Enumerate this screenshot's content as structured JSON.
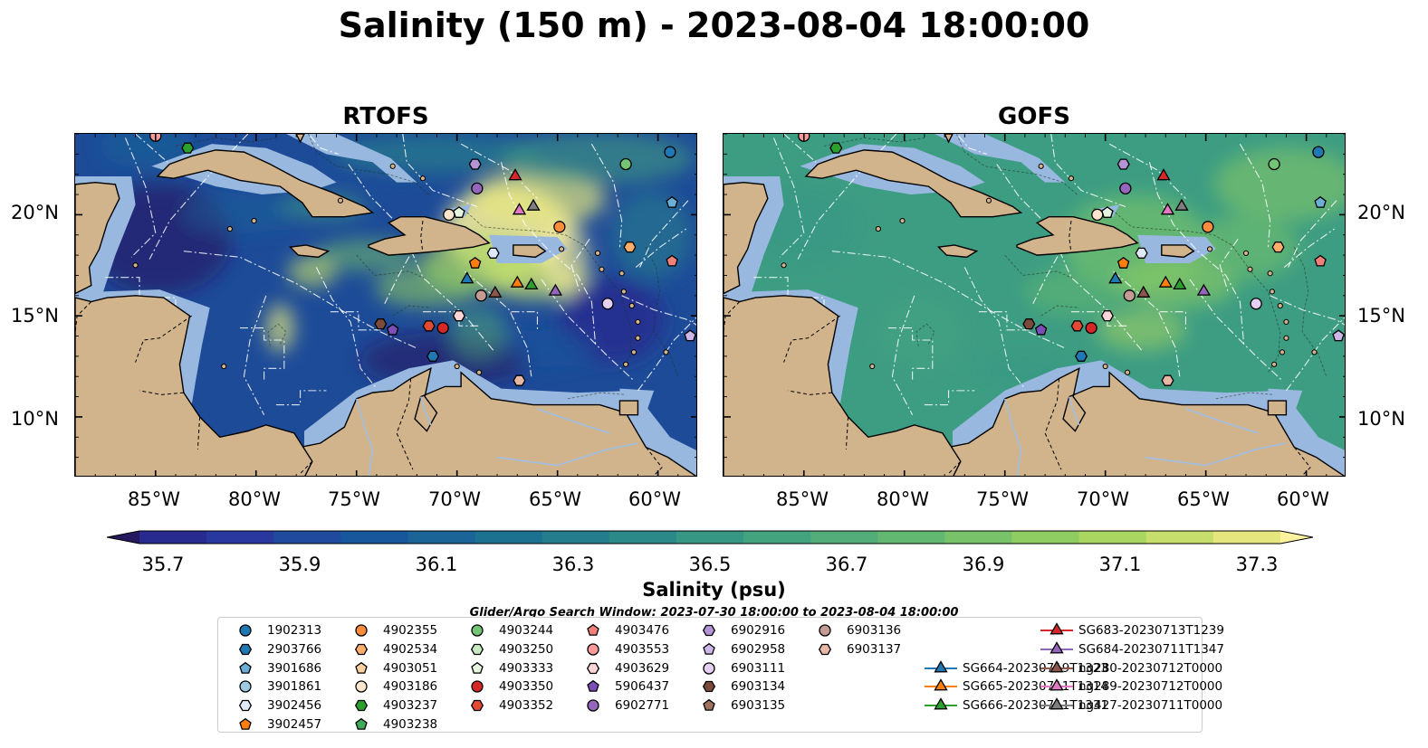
{
  "title": "Salinity (150 m) - 2023-08-04 18:00:00",
  "panels": [
    {
      "title": "RTOFS"
    },
    {
      "title": "GOFS"
    }
  ],
  "axes": {
    "lon_ticks": [
      "85°W",
      "80°W",
      "75°W",
      "70°W",
      "65°W",
      "60°W"
    ],
    "lat_ticks": [
      "20°N",
      "15°N",
      "10°N"
    ]
  },
  "colorbar": {
    "label": "Salinity (psu)",
    "ticks": [
      "35.7",
      "35.9",
      "36.1",
      "36.3",
      "36.5",
      "36.7",
      "36.9",
      "37.1",
      "37.3"
    ],
    "colors": [
      "#26185f",
      "#272a8e",
      "#29389f",
      "#1f4a9d",
      "#19579c",
      "#1a6498",
      "#1c7190",
      "#237d8d",
      "#2b8a89",
      "#369785",
      "#43a37f",
      "#52ad78",
      "#62b871",
      "#78c36a",
      "#8fcd63",
      "#a8d660",
      "#c6df6c",
      "#e5e77e",
      "#fdf29e"
    ]
  },
  "search_window": "Glider/Argo Search Window: 2023-07-30 18:00:00 to 2023-08-04 18:00:00",
  "legend": [
    {
      "label": "1902313",
      "marker": "circle",
      "color": "#1f77b4"
    },
    {
      "label": "2903766",
      "marker": "hexagon",
      "color": "#1f77b4"
    },
    {
      "label": "3901686",
      "marker": "pentagon",
      "color": "#6baed6"
    },
    {
      "label": "3901861",
      "marker": "circle",
      "color": "#9ecae1"
    },
    {
      "label": "3902456",
      "marker": "hexagon",
      "color": "#deebf7"
    },
    {
      "label": "3902457",
      "marker": "pentagon",
      "color": "#ff7f0e"
    },
    {
      "label": "4902355",
      "marker": "circle",
      "color": "#fd8d3c"
    },
    {
      "label": "4902534",
      "marker": "hexagon",
      "color": "#fdae6b"
    },
    {
      "label": "4903051",
      "marker": "pentagon",
      "color": "#fdd0a2"
    },
    {
      "label": "4903186",
      "marker": "circle",
      "color": "#fee6ce"
    },
    {
      "label": "4903237",
      "marker": "hexagon",
      "color": "#2ca02c"
    },
    {
      "label": "4903238",
      "marker": "pentagon",
      "color": "#41ab5d"
    },
    {
      "label": "4903244",
      "marker": "circle",
      "color": "#74c476"
    },
    {
      "label": "4903250",
      "marker": "hexagon",
      "color": "#c7e9c0"
    },
    {
      "label": "4903333",
      "marker": "pentagon",
      "color": "#e5f5e0"
    },
    {
      "label": "4903350",
      "marker": "circle",
      "color": "#d62728"
    },
    {
      "label": "4903352",
      "marker": "hexagon",
      "color": "#e34a33"
    },
    {
      "label": "4903476",
      "marker": "pentagon",
      "color": "#f1807a"
    },
    {
      "label": "4903553",
      "marker": "circle",
      "color": "#fc9a9a"
    },
    {
      "label": "4903629",
      "marker": "hexagon",
      "color": "#fcd5d5"
    },
    {
      "label": "5906437",
      "marker": "pentagon",
      "color": "#7b4fb5"
    },
    {
      "label": "6902771",
      "marker": "circle",
      "color": "#9467bd"
    },
    {
      "label": "6902916",
      "marker": "hexagon",
      "color": "#b395d6"
    },
    {
      "label": "6902958",
      "marker": "pentagon",
      "color": "#cdb6e8"
    },
    {
      "label": "6903111",
      "marker": "circle",
      "color": "#e3d0f2"
    },
    {
      "label": "6903134",
      "marker": "hexagon",
      "color": "#7a4a3a"
    },
    {
      "label": "6903135",
      "marker": "pentagon",
      "color": "#a0715e"
    },
    {
      "label": "6903136",
      "marker": "circle",
      "color": "#c49c94"
    },
    {
      "label": "6903137",
      "marker": "hexagon",
      "color": "#e8b7a6"
    },
    {
      "label": "SG664-20230719T1323",
      "marker": "triangle",
      "color": "#1f77b4"
    },
    {
      "label": "SG665-20230711T1314",
      "marker": "triangle",
      "color": "#ff7f0e"
    },
    {
      "label": "SG666-20230711T1331",
      "marker": "triangle",
      "color": "#2ca02c"
    },
    {
      "label": "SG683-20230713T1239",
      "marker": "triangle",
      "color": "#d62728"
    },
    {
      "label": "SG684-20230711T1347",
      "marker": "triangle",
      "color": "#9467bd"
    },
    {
      "label": "ng280-20230712T0000",
      "marker": "triangle",
      "color": "#8c564b"
    },
    {
      "label": "ng289-20230712T0000",
      "marker": "triangle",
      "color": "#e377c2"
    },
    {
      "label": "ng427-20230711T0000",
      "marker": "triangle",
      "color": "#7f7f7f"
    }
  ],
  "chart_data": {
    "type": "heatmap",
    "title": "Salinity (150 m) - 2023-08-04 18:00:00",
    "variable": "Salinity (psu)",
    "colorbar_range": [
      35.7,
      37.3
    ],
    "colorbar_extend": "both",
    "lon_range": [
      -89,
      -58
    ],
    "lat_range": [
      7,
      24
    ],
    "grid": false,
    "panels": [
      "RTOFS",
      "GOFS"
    ],
    "observations": [
      {
        "id": "1902313",
        "lon": -59.4,
        "lat": 23.1
      },
      {
        "id": "3901686",
        "lon": -59.3,
        "lat": 20.6
      },
      {
        "id": "4903244",
        "lon": -61.6,
        "lat": 22.5
      },
      {
        "id": "6902916",
        "lon": -69.1,
        "lat": 22.5
      },
      {
        "id": "6902771",
        "lon": -69.0,
        "lat": 21.3
      },
      {
        "id": "SG683-20230713T1239",
        "lon": -67.1,
        "lat": 21.9
      },
      {
        "id": "ng427-20230711T0000",
        "lon": -66.2,
        "lat": 20.4
      },
      {
        "id": "ng289-20230712T0000",
        "lon": -66.9,
        "lat": 20.2
      },
      {
        "id": "4902355",
        "lon": -64.9,
        "lat": 19.4
      },
      {
        "id": "4903333",
        "lon": -69.9,
        "lat": 20.1
      },
      {
        "id": "4903186",
        "lon": -70.4,
        "lat": 20.0
      },
      {
        "id": "4902534",
        "lon": -61.4,
        "lat": 18.4
      },
      {
        "id": "4903476",
        "lon": -59.3,
        "lat": 17.7
      },
      {
        "id": "3902456",
        "lon": -68.2,
        "lat": 18.1
      },
      {
        "id": "3902457",
        "lon": -69.1,
        "lat": 17.6
      },
      {
        "id": "SG664-20230719T1323",
        "lon": -69.5,
        "lat": 16.8
      },
      {
        "id": "SG665-20230711T1314",
        "lon": -67.0,
        "lat": 16.6
      },
      {
        "id": "SG666-20230711T1331",
        "lon": -66.3,
        "lat": 16.5
      },
      {
        "id": "SG684-20230711T1347",
        "lon": -65.1,
        "lat": 16.2
      },
      {
        "id": "6903136",
        "lon": -68.8,
        "lat": 16.0
      },
      {
        "id": "ng280-20230712T0000",
        "lon": -68.1,
        "lat": 16.1
      },
      {
        "id": "6902958",
        "lon": -58.4,
        "lat": 14.0
      },
      {
        "id": "6903111",
        "lon": -62.5,
        "lat": 15.6
      },
      {
        "id": "4903629",
        "lon": -69.9,
        "lat": 15.0
      },
      {
        "id": "6903134",
        "lon": -73.8,
        "lat": 14.6
      },
      {
        "id": "5906437",
        "lon": -73.2,
        "lat": 14.3
      },
      {
        "id": "4903352",
        "lon": -71.4,
        "lat": 14.5
      },
      {
        "id": "4903350",
        "lon": -70.7,
        "lat": 14.4
      },
      {
        "id": "2903766",
        "lon": -71.2,
        "lat": 13.0
      },
      {
        "id": "6903137",
        "lon": -66.9,
        "lat": 11.8
      },
      {
        "id": "4903237",
        "lon": -83.4,
        "lat": 23.3
      },
      {
        "id": "4903553",
        "lon": -85.0,
        "lat": 23.9
      }
    ]
  }
}
